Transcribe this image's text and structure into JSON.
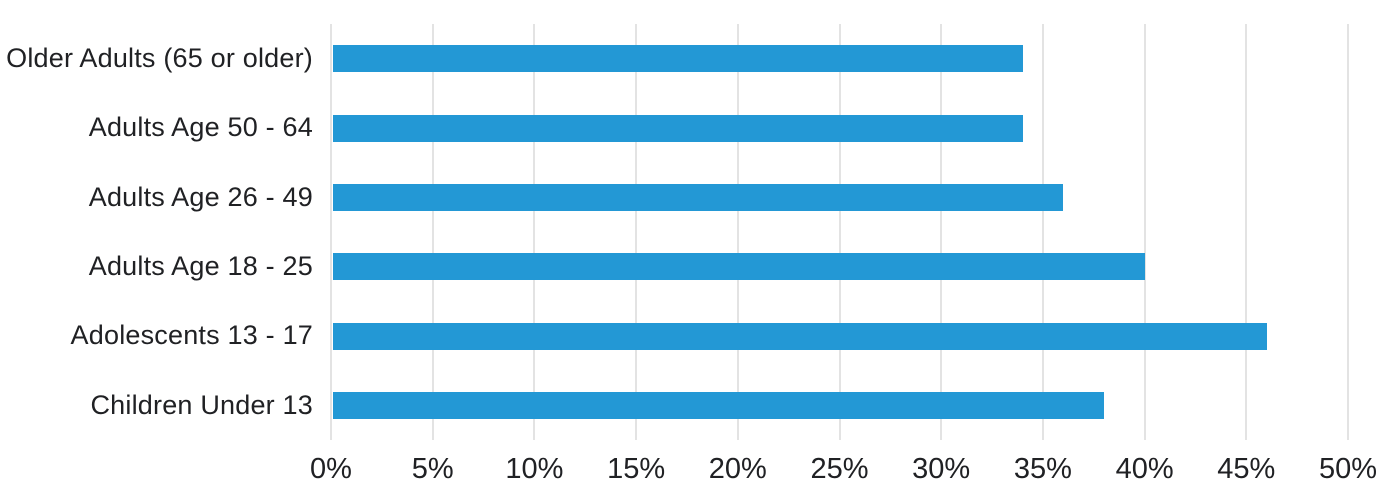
{
  "chart_data": {
    "type": "bar",
    "orientation": "horizontal",
    "title": "",
    "xlabel": "",
    "ylabel": "",
    "categories": [
      "Older Adults (65 or older)",
      "Adults Age 50 - 64",
      "Adults Age 26 - 49",
      "Adults Age 18 - 25",
      "Adolescents 13 - 17",
      "Children Under 13"
    ],
    "values": [
      34,
      34,
      36,
      40,
      46,
      38
    ],
    "unit": "%",
    "xlim": [
      0,
      50
    ],
    "x_ticks": [
      {
        "value": 0,
        "label": "0%"
      },
      {
        "value": 5,
        "label": "5%"
      },
      {
        "value": 10,
        "label": "10%"
      },
      {
        "value": 15,
        "label": "15%"
      },
      {
        "value": 20,
        "label": "20%"
      },
      {
        "value": 25,
        "label": "25%"
      },
      {
        "value": 30,
        "label": "30%"
      },
      {
        "value": 35,
        "label": "35%"
      },
      {
        "value": 40,
        "label": "40%"
      },
      {
        "value": 45,
        "label": "45%"
      },
      {
        "value": 50,
        "label": "50%"
      }
    ],
    "grid": true,
    "legend": false,
    "colors": {
      "bar": "#2398d5",
      "gridline": "#e3e3e3",
      "text": "#202124",
      "background": "#ffffff"
    }
  }
}
